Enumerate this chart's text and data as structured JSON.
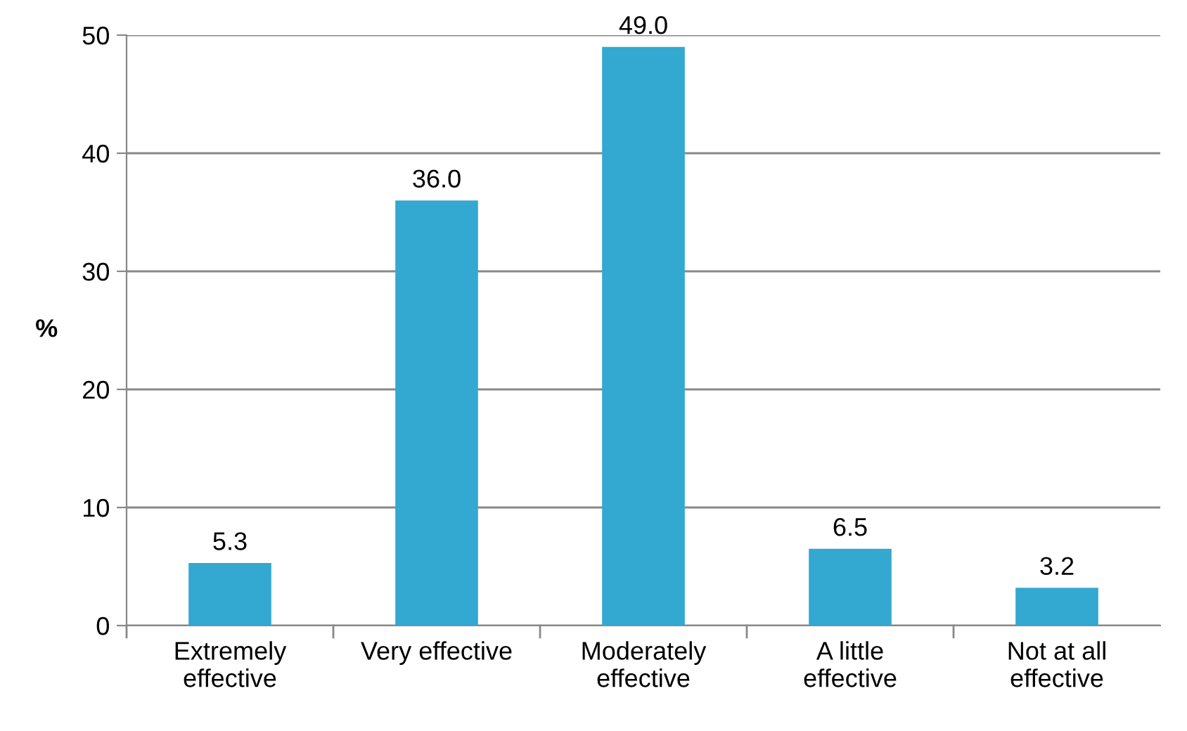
{
  "chart_data": {
    "type": "bar",
    "categories": [
      "Extremely\neffective",
      "Very effective",
      "Moderately\neffective",
      "A little\neffective",
      "Not at all\neffective"
    ],
    "values": [
      5.3,
      36.0,
      49.0,
      6.5,
      3.2
    ],
    "value_labels": [
      "5.3",
      "36.0",
      "49.0",
      "6.5",
      "3.2"
    ],
    "color": "#33a8d0",
    "ylabel": "%",
    "ylim": [
      0,
      50
    ],
    "yticks": [
      0,
      10,
      20,
      30,
      40,
      50
    ],
    "grid": "y"
  }
}
